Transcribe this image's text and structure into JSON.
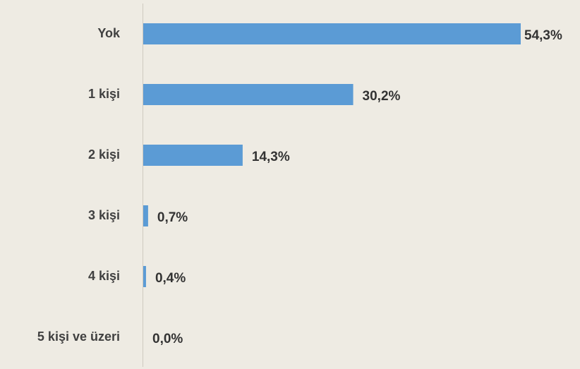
{
  "chart_data": {
    "type": "hbar",
    "categories": [
      "Yok",
      "1 kişi",
      "2 kişi",
      "3 kişi",
      "4 kişi",
      "5 kişi ve üzeri"
    ],
    "values": [
      54.3,
      30.2,
      14.3,
      0.7,
      0.4,
      0.0
    ],
    "value_labels": [
      "54,3%",
      "30,2%",
      "14,3%",
      "0,7%",
      "0,4%",
      "0,0%"
    ],
    "color": "#5b9bd5"
  }
}
